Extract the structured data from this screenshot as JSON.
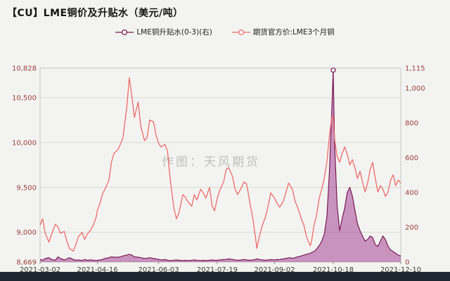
{
  "title": "【CU】LME铜价及升贴水（美元/吨）",
  "watermark": "作图：天风期货",
  "legend": [
    {
      "label": "LME铜升贴水(0-3)(右)",
      "color": "#7a1a55"
    },
    {
      "label": "期货官方价:LME3个月铜",
      "color": "#ee6a6a"
    }
  ],
  "chart_data": {
    "type": "line",
    "title": "【CU】LME铜价及升贴水（美元/吨）",
    "x_tick_labels": [
      "2021-03-02",
      "2021-04-16",
      "2021-06-03",
      "2021-07-19",
      "2021-09-02",
      "2021-10-18",
      "2021-12-10"
    ],
    "x_tick_days": [
      0,
      45,
      93,
      139,
      184,
      230,
      283
    ],
    "x_domain": [
      0,
      283
    ],
    "grid": true,
    "legend_position": "top-center",
    "left_axis": {
      "range": [
        8669,
        10828
      ],
      "ticks": [
        8669,
        9000,
        9500,
        10000,
        10500,
        10828
      ],
      "labels": [
        "8,669",
        "9,000",
        "9,500",
        "10,000",
        "10,500",
        "10,828"
      ],
      "label_color": "#9e3c3c"
    },
    "right_axis": {
      "range": [
        0,
        1115
      ],
      "ticks": [
        0,
        200,
        400,
        600,
        800,
        1000,
        1115
      ],
      "labels": [
        "0",
        "200",
        "400",
        "600",
        "800",
        "1,000",
        "1,115"
      ],
      "label_color": "#9e3c3c"
    },
    "x": [
      0,
      2,
      4,
      7,
      9,
      12,
      14,
      16,
      19,
      21,
      23,
      26,
      28,
      30,
      33,
      35,
      37,
      40,
      42,
      44,
      45,
      47,
      49,
      51,
      54,
      56,
      58,
      61,
      63,
      65,
      68,
      70,
      72,
      74,
      77,
      79,
      82,
      84,
      86,
      89,
      91,
      93,
      95,
      98,
      100,
      102,
      105,
      107,
      109,
      112,
      114,
      116,
      119,
      121,
      123,
      126,
      128,
      130,
      133,
      135,
      137,
      139,
      141,
      144,
      146,
      148,
      151,
      153,
      155,
      158,
      160,
      162,
      165,
      167,
      169,
      170,
      172,
      174,
      177,
      179,
      181,
      184,
      186,
      188,
      191,
      193,
      195,
      198,
      200,
      202,
      205,
      207,
      209,
      212,
      213,
      215,
      217,
      219,
      221,
      223,
      225,
      227,
      229,
      230,
      231,
      233,
      235,
      237,
      239,
      241,
      243,
      245,
      247,
      249,
      251,
      253,
      255,
      257,
      259,
      261,
      263,
      265,
      267,
      269,
      271,
      273,
      275,
      277,
      279,
      281,
      283
    ],
    "series": [
      {
        "name": "LME铜升贴水(0-3)(右)",
        "axis": "right",
        "style": "area",
        "color": "#7a1a55",
        "fill": "rgba(164,68,150,0.55)",
        "peak_marker": true,
        "values": [
          15,
          10,
          20,
          25,
          15,
          10,
          30,
          20,
          12,
          18,
          25,
          15,
          10,
          12,
          8,
          15,
          10,
          12,
          10,
          8,
          10,
          12,
          15,
          20,
          25,
          30,
          28,
          28,
          30,
          35,
          40,
          45,
          40,
          30,
          28,
          25,
          20,
          22,
          25,
          20,
          18,
          15,
          12,
          14,
          10,
          8,
          10,
          12,
          10,
          8,
          10,
          8,
          10,
          12,
          10,
          8,
          10,
          8,
          10,
          12,
          10,
          10,
          12,
          14,
          15,
          18,
          15,
          12,
          10,
          12,
          15,
          12,
          10,
          12,
          15,
          18,
          15,
          12,
          10,
          12,
          14,
          12,
          14,
          15,
          18,
          20,
          25,
          22,
          25,
          30,
          35,
          40,
          45,
          50,
          55,
          60,
          75,
          95,
          120,
          160,
          260,
          520,
          900,
          1103.5,
          700,
          330,
          180,
          250,
          310,
          400,
          430,
          380,
          300,
          220,
          180,
          150,
          120,
          130,
          150,
          140,
          100,
          90,
          120,
          150,
          130,
          90,
          70,
          60,
          50,
          40,
          35
        ]
      },
      {
        "name": "期货官方价:LME3个月铜",
        "axis": "left",
        "style": "line",
        "color": "#ee6a6a",
        "peak_marker": false,
        "values": [
          9080,
          9150,
          8990,
          8890,
          8980,
          9090,
          9060,
          8990,
          9010,
          8900,
          8820,
          8790,
          8860,
          8950,
          9000,
          8920,
          8980,
          9030,
          9090,
          9170,
          9250,
          9320,
          9430,
          9480,
          9580,
          9780,
          9880,
          9920,
          9980,
          10050,
          10390,
          10720,
          10520,
          10280,
          10450,
          10180,
          10020,
          10060,
          10250,
          10230,
          10080,
          9990,
          9950,
          9980,
          9900,
          9600,
          9270,
          9150,
          9220,
          9420,
          9390,
          9340,
          9290,
          9420,
          9360,
          9480,
          9440,
          9380,
          9500,
          9290,
          9240,
          9380,
          9470,
          9560,
          9700,
          9720,
          9620,
          9480,
          9420,
          9500,
          9560,
          9540,
          9300,
          9150,
          8950,
          8820,
          8950,
          9060,
          9180,
          9300,
          9440,
          9380,
          9320,
          9280,
          9350,
          9450,
          9550,
          9480,
          9350,
          9280,
          9150,
          9080,
          8950,
          8850,
          8900,
          9080,
          9200,
          9380,
          9480,
          9600,
          9780,
          10080,
          10290,
          10280,
          10050,
          9850,
          9780,
          9880,
          9950,
          9870,
          9750,
          9810,
          9720,
          9600,
          9680,
          9560,
          9450,
          9550,
          9700,
          9780,
          9600,
          9450,
          9520,
          9480,
          9400,
          9450,
          9580,
          9640,
          9520,
          9580,
          9550
        ]
      }
    ]
  }
}
